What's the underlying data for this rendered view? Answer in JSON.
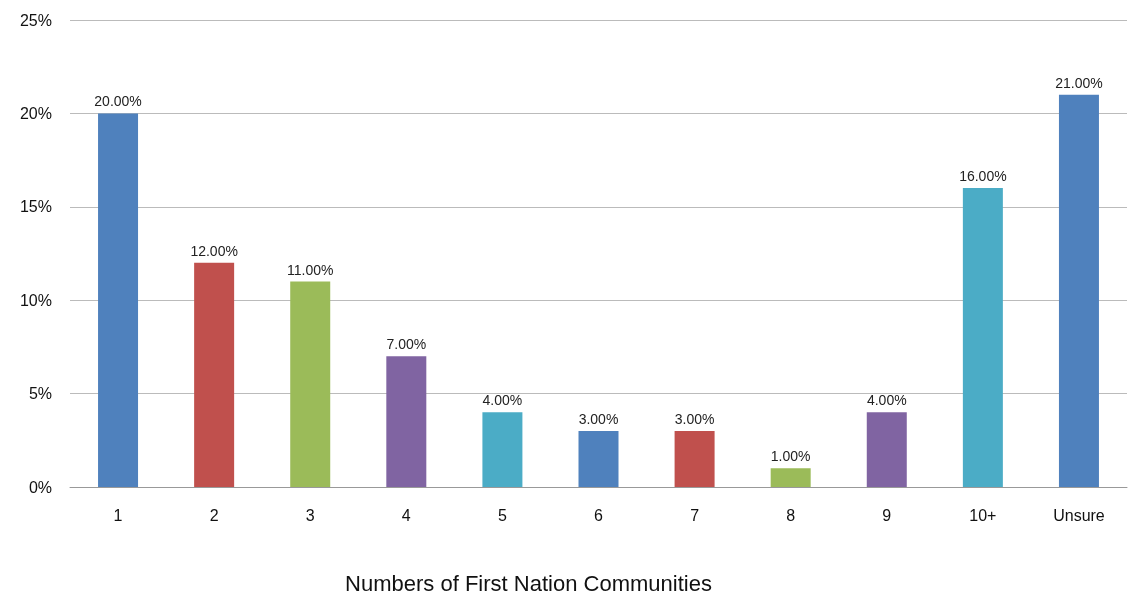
{
  "chart_data": {
    "type": "bar",
    "xlabel": "Numbers of First Nation Communities",
    "categories": [
      "1",
      "2",
      "3",
      "4",
      "5",
      "6",
      "7",
      "8",
      "9",
      "10+",
      "Unsure"
    ],
    "values": [
      20,
      12,
      11,
      7,
      4,
      3,
      3,
      1,
      4,
      16,
      21
    ],
    "colors": [
      "#4f81bd",
      "#c0504d",
      "#9bbb59",
      "#8064a2",
      "#4bacc6",
      "#4f81bd",
      "#c0504d",
      "#9bbb59",
      "#8064a2",
      "#4bacc6",
      "#4f81bd"
    ],
    "value_labels": [
      "20.00%",
      "12.00%",
      "11.00%",
      "7.00%",
      "4.00%",
      "3.00%",
      "3.00%",
      "1.00%",
      "4.00%",
      "16.00%",
      "21.00%"
    ],
    "ylim": [
      0,
      25
    ],
    "yticks": [
      {
        "value": 0,
        "label": "0%"
      },
      {
        "value": 5,
        "label": "5%"
      },
      {
        "value": 10,
        "label": "10%"
      },
      {
        "value": 15,
        "label": "15%"
      },
      {
        "value": 20,
        "label": "20%"
      },
      {
        "value": 25,
        "label": "25%"
      }
    ],
    "grid": "y"
  }
}
